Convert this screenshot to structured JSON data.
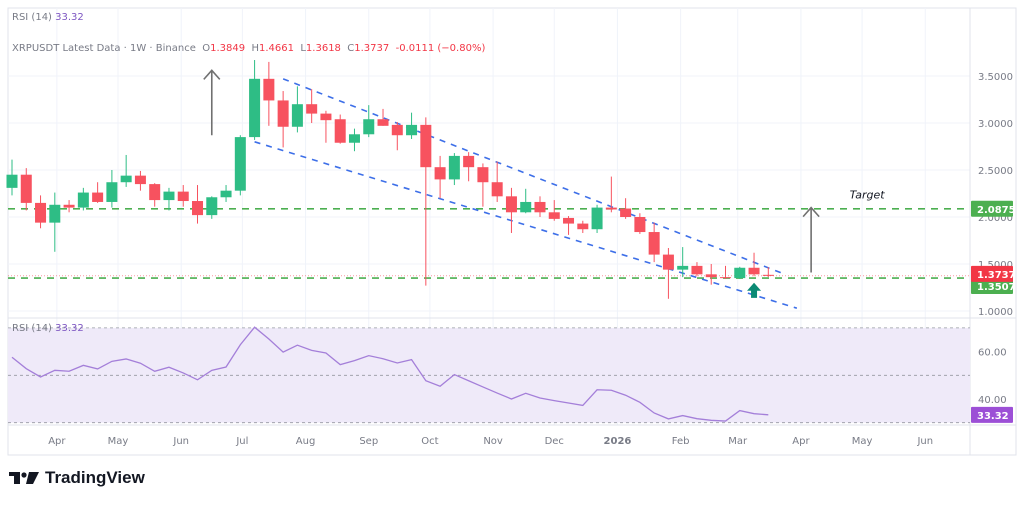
{
  "rsi_header": {
    "label": "RSI (14)",
    "value": "33.32"
  },
  "legend": {
    "symbol": "XRPUSDT Latest Data · 1W · Binance",
    "open_label": "O",
    "open": "1.3849",
    "high_label": "H",
    "high": "1.4661",
    "low_label": "L",
    "low": "1.3618",
    "close_label": "C",
    "close": "1.3737",
    "change": "-0.0111 (−0.80%)"
  },
  "rsi_pane_legend": {
    "label": "RSI (14)",
    "value": "33.32"
  },
  "brand": {
    "name": "TradingView"
  },
  "colors": {
    "up": "#2ebd85",
    "down": "#f7525f",
    "rsi_line": "#a47fd9",
    "rsi_band": "#efeaf9",
    "channel": "#3d6fe8",
    "level": "#4caf50",
    "badge_green": "#4caf50",
    "badge_red": "#f23645",
    "badge_rsi": "#9c4fd6",
    "arrow": "#707070",
    "signal_arrow": "#0b8a74"
  },
  "chart_data": [
    {
      "type": "candlestick",
      "title": "",
      "interval": "1W",
      "y_ticks": [
        "3.5000",
        "3.0000",
        "2.5000",
        "2.0000",
        "1.5000",
        "1.0000"
      ],
      "ylim": [
        0.95,
        3.85
      ],
      "x_ticks": [
        {
          "date": "2025-04-01",
          "label": "Apr"
        },
        {
          "date": "2025-05-01",
          "label": "May"
        },
        {
          "date": "2025-06-01",
          "label": "Jun"
        },
        {
          "date": "2025-07-01",
          "label": "Jul"
        },
        {
          "date": "2025-08-01",
          "label": "Aug"
        },
        {
          "date": "2025-09-01",
          "label": "Sep"
        },
        {
          "date": "2025-10-01",
          "label": "Oct"
        },
        {
          "date": "2025-11-01",
          "label": "Nov"
        },
        {
          "date": "2025-12-01",
          "label": "Dec"
        },
        {
          "date": "2026-01-01",
          "label": "2026"
        },
        {
          "date": "2026-02-01",
          "label": "Feb"
        },
        {
          "date": "2026-03-01",
          "label": "Mar"
        },
        {
          "date": "2026-04-01",
          "label": "Apr"
        },
        {
          "date": "2026-05-01",
          "label": "May"
        },
        {
          "date": "2026-06-01",
          "label": "Jun"
        }
      ],
      "candles_columns": [
        "date",
        "open",
        "high",
        "low",
        "close"
      ],
      "candles": [
        [
          "2025-03-10",
          2.31,
          2.61,
          2.23,
          2.45
        ],
        [
          "2025-03-17",
          2.45,
          2.52,
          2.07,
          2.15
        ],
        [
          "2025-03-24",
          2.15,
          2.23,
          1.88,
          1.94
        ],
        [
          "2025-03-31",
          1.94,
          2.26,
          1.63,
          2.13
        ],
        [
          "2025-04-07",
          2.13,
          2.18,
          2.05,
          2.1
        ],
        [
          "2025-04-14",
          2.1,
          2.31,
          2.07,
          2.26
        ],
        [
          "2025-04-21",
          2.26,
          2.37,
          2.15,
          2.16
        ],
        [
          "2025-04-28",
          2.16,
          2.5,
          2.1,
          2.37
        ],
        [
          "2025-05-05",
          2.37,
          2.66,
          2.32,
          2.44
        ],
        [
          "2025-05-12",
          2.44,
          2.49,
          2.28,
          2.35
        ],
        [
          "2025-05-19",
          2.35,
          2.36,
          2.11,
          2.18
        ],
        [
          "2025-05-26",
          2.18,
          2.31,
          2.07,
          2.27
        ],
        [
          "2025-06-02",
          2.27,
          2.34,
          2.11,
          2.17
        ],
        [
          "2025-06-09",
          2.17,
          2.34,
          1.93,
          2.02
        ],
        [
          "2025-06-16",
          2.02,
          2.22,
          1.98,
          2.21
        ],
        [
          "2025-06-23",
          2.21,
          2.34,
          2.16,
          2.28
        ],
        [
          "2025-06-30",
          2.28,
          2.87,
          2.23,
          2.85
        ],
        [
          "2025-07-07",
          2.85,
          3.67,
          2.82,
          3.47
        ],
        [
          "2025-07-14",
          3.47,
          3.65,
          2.97,
          3.24
        ],
        [
          "2025-07-21",
          3.24,
          3.34,
          2.74,
          2.96
        ],
        [
          "2025-07-28",
          2.96,
          3.39,
          2.9,
          3.2
        ],
        [
          "2025-08-04",
          3.2,
          3.36,
          3.0,
          3.1
        ],
        [
          "2025-08-11",
          3.1,
          3.13,
          2.79,
          3.03
        ],
        [
          "2025-08-18",
          3.04,
          3.09,
          2.78,
          2.79
        ],
        [
          "2025-08-25",
          2.79,
          2.94,
          2.7,
          2.88
        ],
        [
          "2025-09-01",
          2.88,
          3.19,
          2.85,
          3.04
        ],
        [
          "2025-09-08",
          3.04,
          3.15,
          2.97,
          2.97
        ],
        [
          "2025-09-15",
          2.98,
          3.01,
          2.71,
          2.87
        ],
        [
          "2025-09-22",
          2.87,
          3.11,
          2.83,
          2.98
        ],
        [
          "2025-09-29",
          2.98,
          3.06,
          1.27,
          2.53
        ],
        [
          "2025-10-06",
          2.53,
          2.65,
          2.2,
          2.4
        ],
        [
          "2025-10-13",
          2.4,
          2.68,
          2.34,
          2.65
        ],
        [
          "2025-10-20",
          2.65,
          2.69,
          2.38,
          2.53
        ],
        [
          "2025-10-27",
          2.53,
          2.57,
          2.11,
          2.37
        ],
        [
          "2025-11-03",
          2.37,
          2.59,
          2.16,
          2.22
        ],
        [
          "2025-11-10",
          2.22,
          2.31,
          1.83,
          2.05
        ],
        [
          "2025-11-17",
          2.05,
          2.3,
          2.04,
          2.16
        ],
        [
          "2025-11-24",
          2.16,
          2.22,
          2.0,
          2.05
        ],
        [
          "2025-12-01",
          2.05,
          2.18,
          1.96,
          1.98
        ],
        [
          "2025-12-08",
          1.99,
          2.01,
          1.81,
          1.93
        ],
        [
          "2025-12-15",
          1.93,
          1.96,
          1.83,
          1.87
        ],
        [
          "2025-12-22",
          1.87,
          2.13,
          1.83,
          2.1
        ],
        [
          "2025-12-29",
          2.1,
          2.43,
          2.05,
          2.08
        ],
        [
          "2026-01-05",
          2.09,
          2.2,
          1.98,
          2.0
        ],
        [
          "2026-01-12",
          2.0,
          2.04,
          1.82,
          1.84
        ],
        [
          "2026-01-19",
          1.84,
          1.94,
          1.52,
          1.6
        ],
        [
          "2026-01-26",
          1.6,
          1.67,
          1.13,
          1.44
        ],
        [
          "2026-02-02",
          1.44,
          1.68,
          1.36,
          1.48
        ],
        [
          "2026-02-09",
          1.48,
          1.52,
          1.37,
          1.39
        ],
        [
          "2026-02-16",
          1.39,
          1.5,
          1.28,
          1.36
        ],
        [
          "2026-02-23",
          1.36,
          1.48,
          1.34,
          1.35
        ],
        [
          "2026-03-02",
          1.35,
          1.47,
          1.34,
          1.46
        ],
        [
          "2026-03-09",
          1.46,
          1.62,
          1.37,
          1.39
        ],
        [
          "2026-03-16",
          1.3849,
          1.4661,
          1.3618,
          1.3737
        ]
      ],
      "horizontal_levels": [
        {
          "price": 2.0875,
          "label": "2.0875",
          "color": "#4caf50"
        },
        {
          "price": 1.3507,
          "label": "1.3507",
          "color": "#4caf50"
        }
      ],
      "last_price": {
        "price": 1.3737,
        "label": "1.3737"
      },
      "channel_lines": [
        {
          "from": [
            "2025-07-21",
            3.47
          ],
          "to": [
            "2026-03-23",
            1.4
          ]
        },
        {
          "from": [
            "2025-07-07",
            2.8
          ],
          "to": [
            "2026-03-30",
            1.03
          ]
        }
      ],
      "arrows": [
        {
          "kind": "thin",
          "date": "2025-06-16",
          "from": 2.87,
          "to": 3.56
        },
        {
          "kind": "thin",
          "date": "2026-04-06",
          "from": 1.41,
          "to": 2.1
        },
        {
          "kind": "block",
          "date": "2026-03-09",
          "from": 1.14,
          "to": 1.3
        }
      ],
      "annotations": [
        {
          "text": "Target",
          "date": "2026-04-20",
          "price": 2.24
        }
      ]
    },
    {
      "type": "line",
      "title": "RSI (14)",
      "y_ticks": [
        "60.00",
        "40.00"
      ],
      "bands": [
        70,
        50,
        30
      ],
      "ylim": [
        28,
        72
      ],
      "last_value_label": "33.32",
      "values": [
        57.6,
        52.8,
        49.3,
        52.1,
        51.7,
        54.2,
        52.7,
        55.9,
        56.9,
        55.1,
        51.7,
        53.4,
        51.0,
        48.1,
        52.1,
        53.5,
        62.9,
        70.3,
        65.3,
        59.8,
        62.7,
        60.5,
        59.4,
        54.5,
        56.2,
        58.3,
        57.0,
        55.2,
        56.6,
        47.7,
        45.4,
        50.3,
        47.7,
        45.1,
        42.5,
        40.0,
        42.4,
        40.4,
        39.3,
        38.3,
        37.3,
        43.9,
        43.7,
        41.6,
        38.6,
        34.1,
        31.6,
        33.0,
        31.7,
        31.0,
        30.7,
        35.1,
        33.8,
        33.32
      ]
    }
  ]
}
